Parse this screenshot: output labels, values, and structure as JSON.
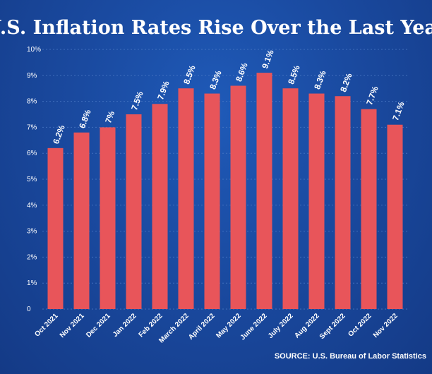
{
  "chart_data": {
    "type": "bar",
    "title": "U.S. Inflation Rates Rise Over the Last Year",
    "source": "SOURCE: U.S. Bureau of Labor Statistics",
    "categories": [
      "Oct 2021",
      "Nov 2021",
      "Dec 2021",
      "Jan 2022",
      "Feb 2022",
      "March 2022",
      "April 2022",
      "May 2022",
      "June 2022",
      "July 2022",
      "Aug 2022",
      "Sept 2022",
      "Oct 2022",
      "Nov 2022"
    ],
    "values": [
      6.2,
      6.8,
      7,
      7.5,
      7.9,
      8.5,
      8.3,
      8.6,
      9.1,
      8.5,
      8.3,
      8.2,
      7.7,
      7.1
    ],
    "data_labels": [
      "6.2%",
      "6.8%",
      "7%",
      "7.5%",
      "7.9%",
      "8.5%",
      "8.3%",
      "8.6%",
      "9.1%",
      "8.5%",
      "8.3%",
      "8.2%",
      "7.7%",
      "7.1%"
    ],
    "yticks": [
      0,
      1,
      2,
      3,
      4,
      5,
      6,
      7,
      8,
      9,
      10
    ],
    "ytick_labels": [
      "0",
      "1%",
      "2%",
      "3%",
      "4%",
      "5%",
      "6%",
      "7%",
      "8%",
      "9%",
      "10%"
    ],
    "ylim": [
      0,
      10
    ],
    "xlabel": "",
    "ylabel": "",
    "grid": true,
    "bar_color": "#e8555a"
  }
}
